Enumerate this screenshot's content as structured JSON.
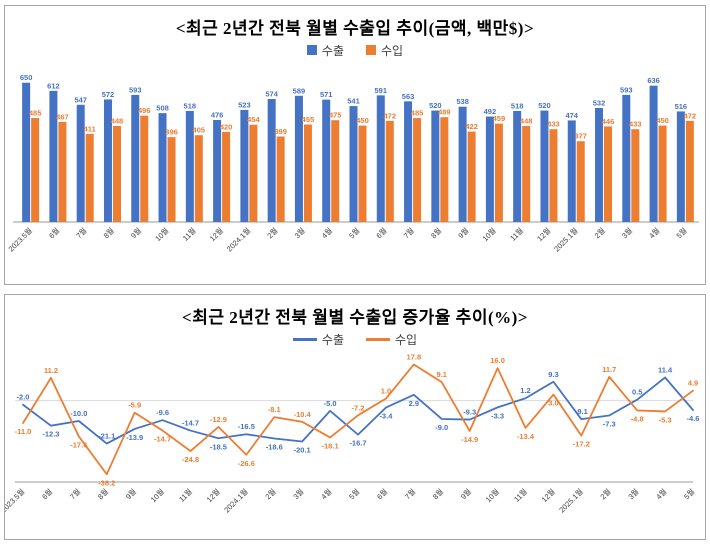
{
  "colors": {
    "export": "#4472C4",
    "import": "#ED7D31",
    "axis": "#9a9a9a",
    "grid": "#d9d9d9",
    "tick_text": "#404040"
  },
  "chart_data": [
    {
      "type": "bar",
      "title": "<최근 2년간 전북 월별 수출입 추이(금액, 백만$)>",
      "legend": [
        "수출",
        "수입"
      ],
      "legend_position": "top",
      "grid": false,
      "ylim": [
        0,
        700
      ],
      "xlabel": "",
      "ylabel": "",
      "categories": [
        "2023.5월",
        "6월",
        "7월",
        "8월",
        "9월",
        "10월",
        "11월",
        "12월",
        "2024.1월",
        "2월",
        "3월",
        "4월",
        "5월",
        "6월",
        "7월",
        "8월",
        "9월",
        "10월",
        "11월",
        "12월",
        "2025.1월",
        "2월",
        "3월",
        "4월",
        "5월"
      ],
      "series": [
        {
          "name": "수출",
          "color": "#4472C4",
          "values": [
            650,
            612,
            547,
            572,
            593,
            508,
            518,
            476,
            523,
            574,
            589,
            571,
            541,
            591,
            563,
            520,
            538,
            492,
            518,
            520,
            474,
            532,
            593,
            636,
            516
          ]
        },
        {
          "name": "수입",
          "color": "#ED7D31",
          "values": [
            485,
            467,
            411,
            448,
            496,
            396,
            405,
            420,
            454,
            399,
            455,
            475,
            450,
            472,
            485,
            489,
            422,
            459,
            448,
            433,
            377,
            446,
            433,
            450,
            472
          ]
        }
      ]
    },
    {
      "type": "line",
      "title": "<최근 2년간 전북 월별 수출입 증가율 추이(%)>",
      "legend": [
        "수출",
        "수입"
      ],
      "legend_position": "top",
      "grid": false,
      "ylim": [
        -40,
        20
      ],
      "xlabel": "",
      "ylabel": "",
      "categories": [
        "2023.5월",
        "6월",
        "7월",
        "8월",
        "9월",
        "10월",
        "11월",
        "12월",
        "2024.1월",
        "2월",
        "3월",
        "4월",
        "5월",
        "6월",
        "7월",
        "8월",
        "9월",
        "10월",
        "11월",
        "12월",
        "2025.1월",
        "2월",
        "3월",
        "4월",
        "5월"
      ],
      "series": [
        {
          "name": "수출",
          "color": "#4472C4",
          "values": [
            -2.0,
            -12.3,
            -10.0,
            -21.1,
            -13.9,
            -9.6,
            -14.7,
            -18.5,
            -16.5,
            -18.6,
            -20.1,
            -5.0,
            -16.7,
            -3.4,
            2.9,
            -9.0,
            -9.3,
            -3.3,
            1.2,
            9.3,
            -9.1,
            -7.3,
            0.5,
            11.4,
            -4.6
          ]
        },
        {
          "name": "수입",
          "color": "#ED7D31",
          "values": [
            -11.0,
            11.2,
            -17.6,
            -36.2,
            -5.9,
            -14.7,
            -24.8,
            -12.9,
            -26.6,
            -8.1,
            -10.4,
            -18.1,
            -7.2,
            1.0,
            17.8,
            9.1,
            -14.9,
            16.0,
            -13.4,
            3.0,
            -17.2,
            11.7,
            -4.8,
            -5.3,
            4.9
          ]
        }
      ]
    }
  ]
}
